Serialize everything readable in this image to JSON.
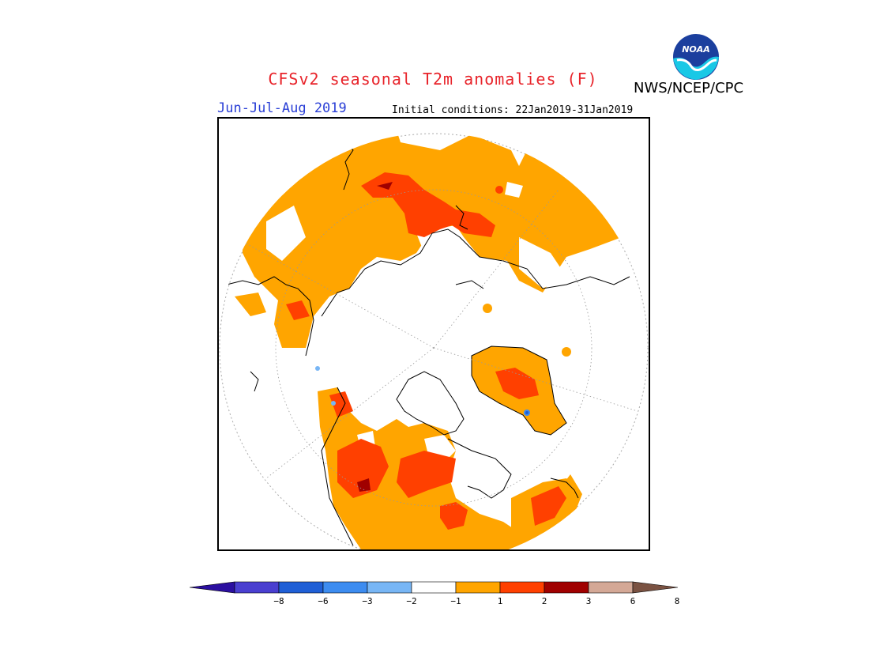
{
  "header": {
    "title": "CFSv2 seasonal T2m anomalies (F)",
    "agency": "NWS/NCEP/CPC",
    "season": "Jun-Jul-Aug 2019",
    "initial_conditions": "Initial conditions: 22Jan2019-31Jan2019",
    "logo_text": "NOAA"
  },
  "colorbar": {
    "colors": [
      "#2b0fa0",
      "#4a3fd0",
      "#1f5fd6",
      "#3d8cf0",
      "#78b6f5",
      "#ffffff",
      "#ffa500",
      "#ff4000",
      "#a00000",
      "#d4a896",
      "#7a5242"
    ],
    "ticks": [
      "−8",
      "−6",
      "−3",
      "−2",
      "−1",
      "1",
      "2",
      "3",
      "6",
      "8"
    ]
  },
  "map": {
    "projection": "north-polar-stereographic",
    "colors": {
      "anomaly_1_2": "#ffa500",
      "anomaly_2_3": "#ff4000",
      "anomaly_3_6": "#a00000",
      "anomaly_neg_2_3": "#3d8cf0",
      "coastline": "#000000",
      "grid": "#888888"
    }
  }
}
